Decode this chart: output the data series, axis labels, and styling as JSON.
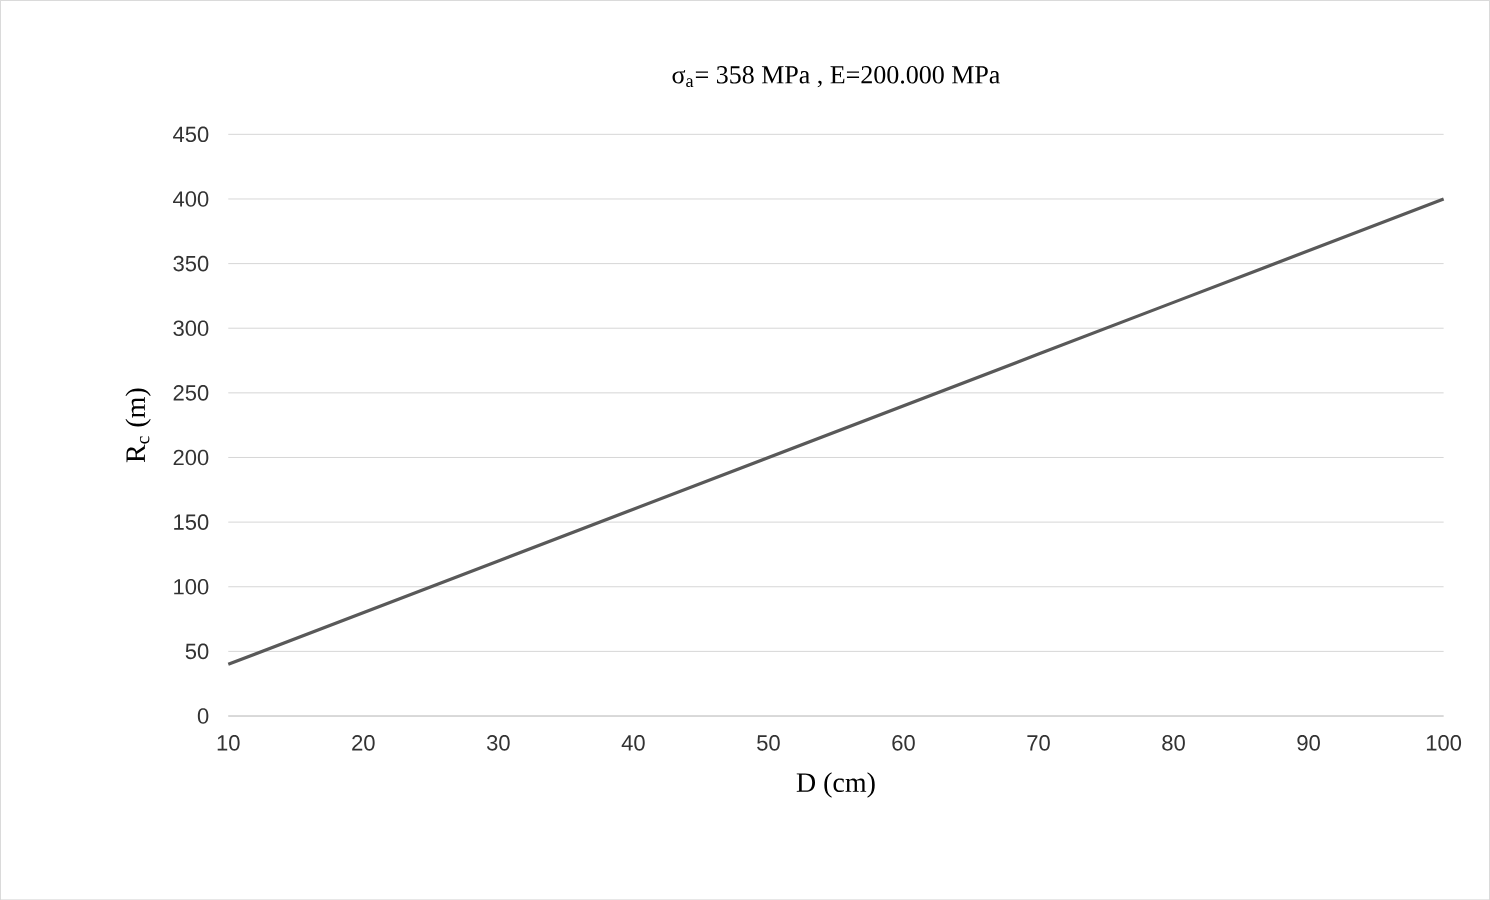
{
  "chart_data": {
    "type": "line",
    "title": "σ$_{a}$= 358 MPa , E=200.000 MPa",
    "xlabel": "D (cm)",
    "ylabel": "R$_{c}$ (m)",
    "x": [
      10,
      20,
      30,
      40,
      50,
      60,
      70,
      80,
      90,
      100
    ],
    "values": [
      40,
      80,
      120,
      160,
      200,
      240,
      280,
      320,
      360,
      400
    ],
    "color": "#595959",
    "xlim": [
      10,
      100
    ],
    "xticks": [
      10,
      20,
      30,
      40,
      50,
      60,
      70,
      80,
      90,
      100
    ],
    "ylim": [
      0,
      450
    ],
    "yticks": [
      0,
      50,
      100,
      150,
      200,
      250,
      300,
      350,
      400,
      450
    ],
    "grid": "y",
    "marker": "none",
    "line_style": "solid"
  }
}
